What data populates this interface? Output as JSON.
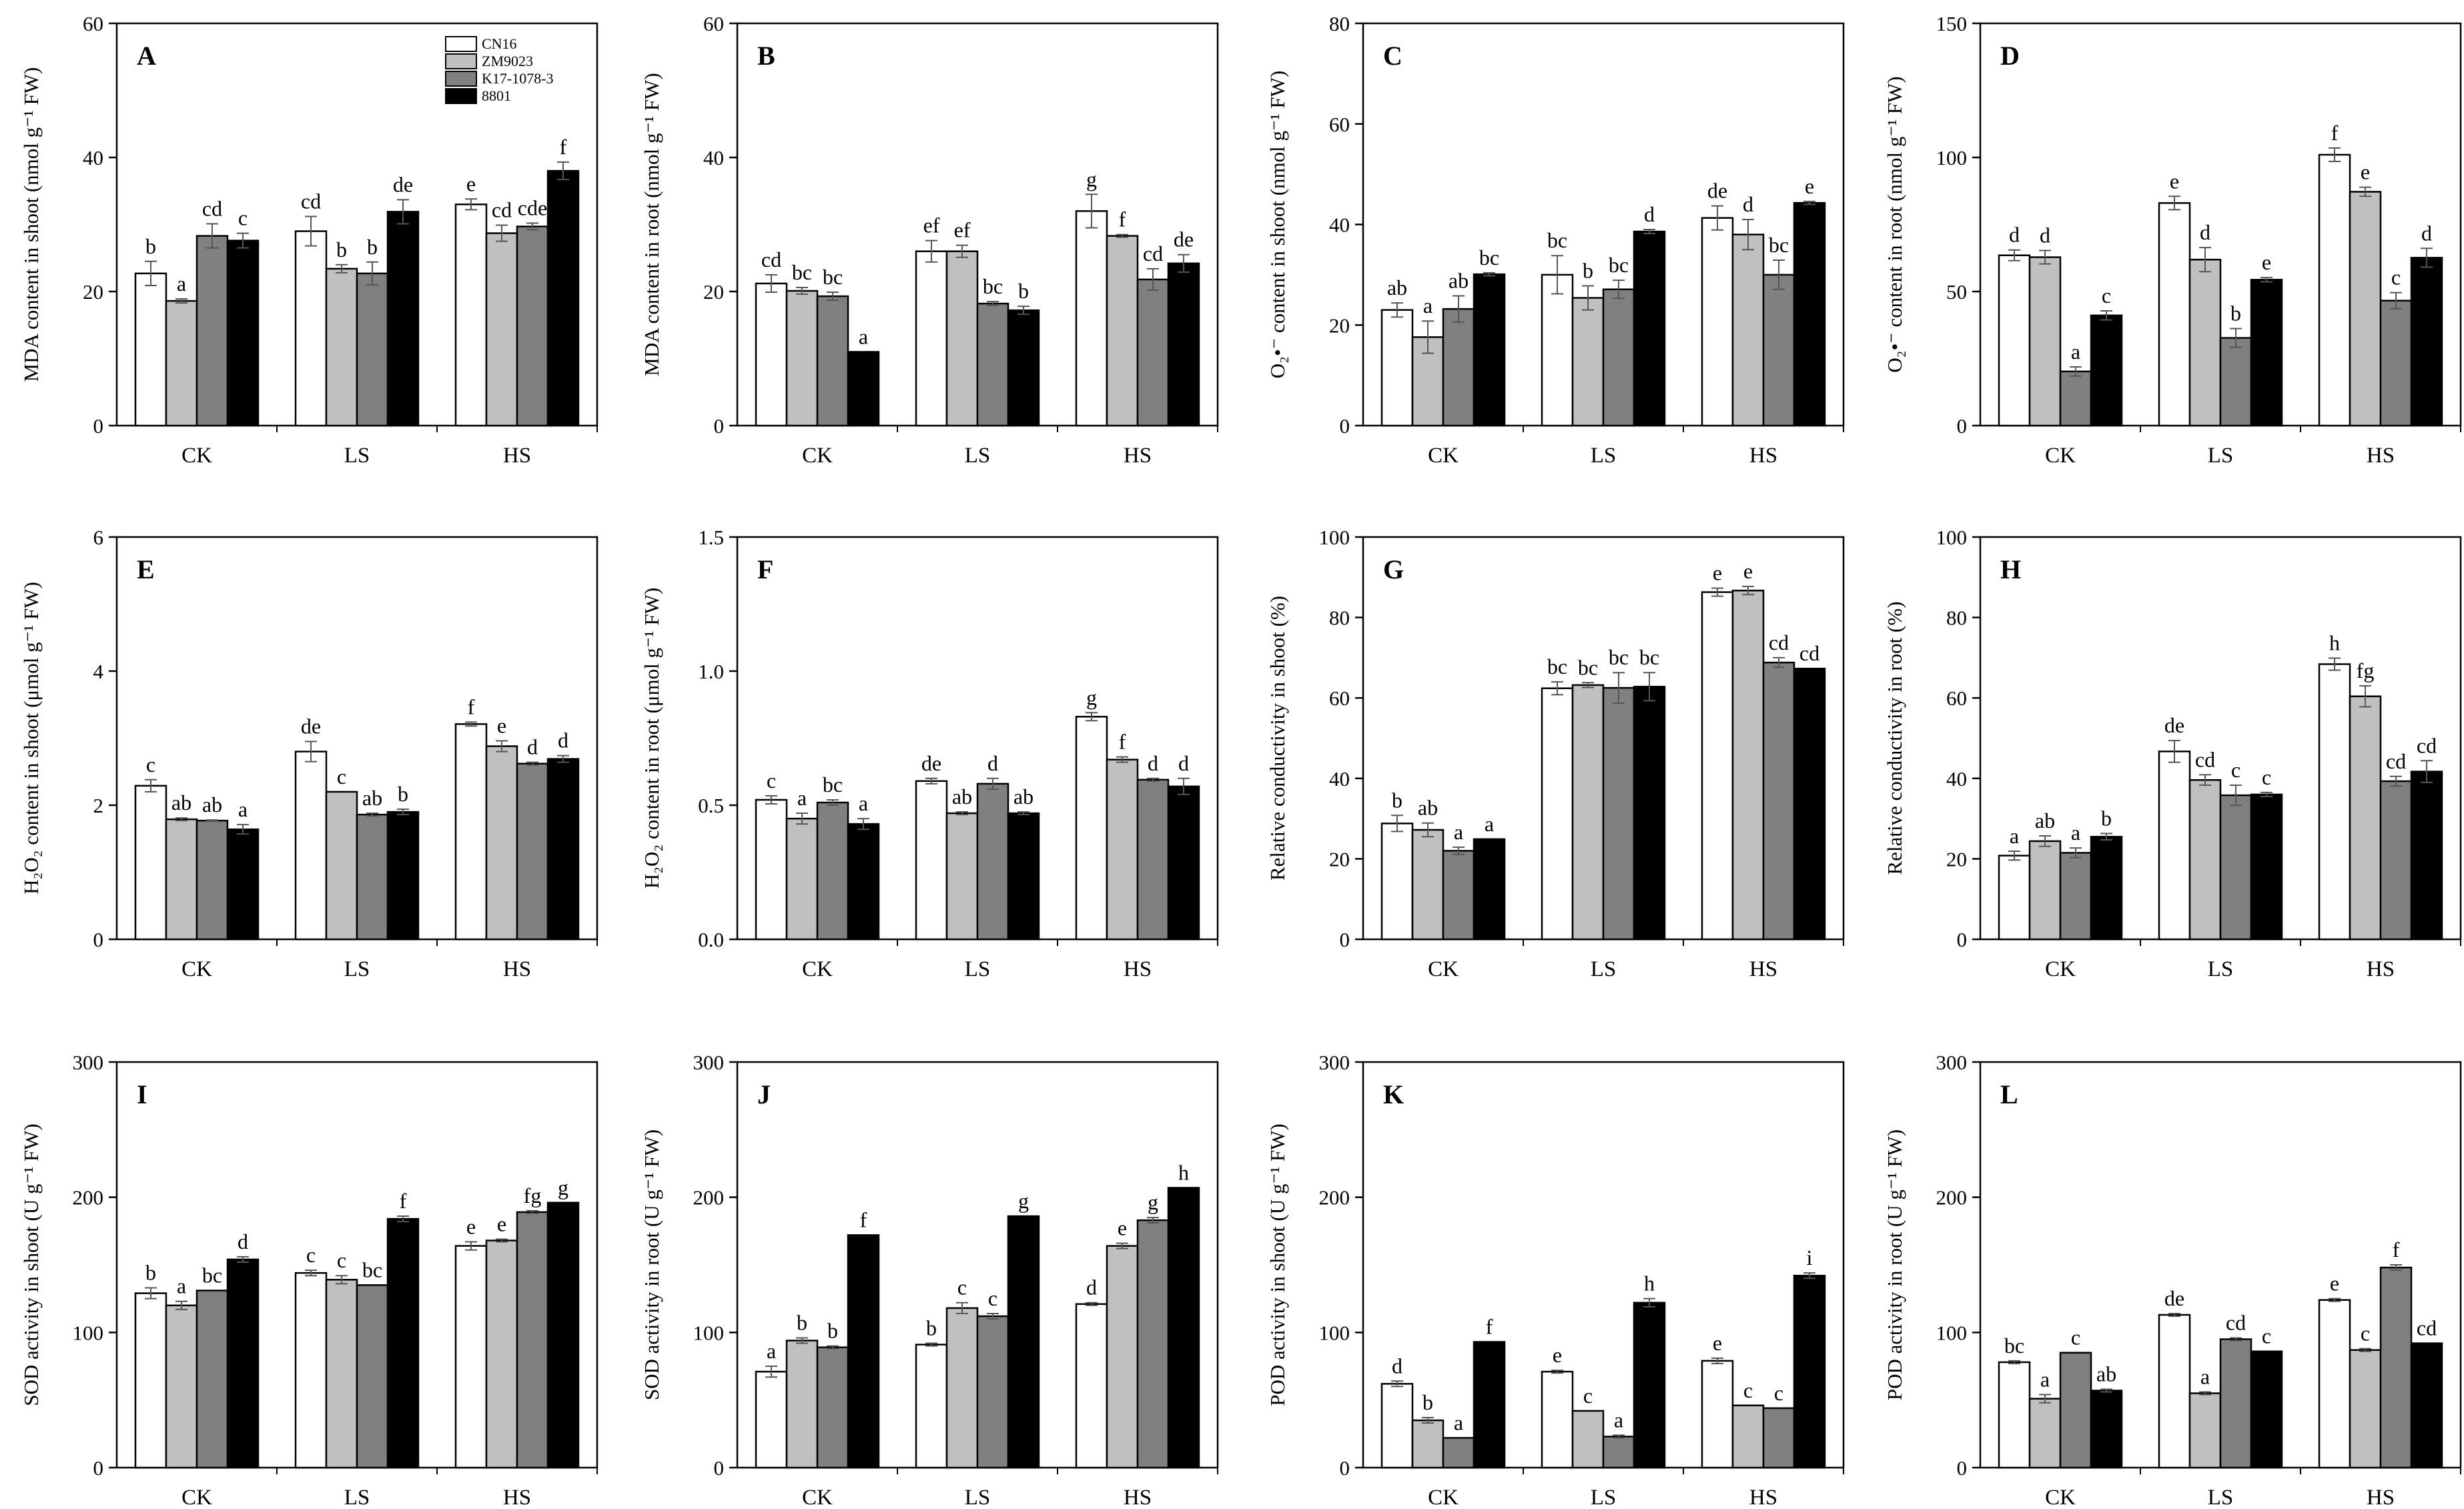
{
  "legend": {
    "entries": [
      "CN16",
      "ZM9023",
      "K17-1078-3",
      "8801"
    ],
    "colors": [
      "#ffffff",
      "#c0c0c0",
      "#808080",
      "#000000"
    ]
  },
  "chart_data": [
    {
      "panel": "A",
      "type": "bar",
      "ylabel": "MDA content in shoot (nmol g⁻¹ FW)",
      "categories": [
        "CK",
        "LS",
        "HS"
      ],
      "ylim": [
        0,
        60
      ],
      "yticks": [
        0,
        20,
        40,
        60
      ],
      "series": [
        {
          "name": "CN16",
          "values": [
            22.7,
            29.0,
            33.0
          ],
          "errors": [
            1.8,
            2.2,
            0.8
          ],
          "letters": [
            "b",
            "cd",
            "e"
          ]
        },
        {
          "name": "ZM9023",
          "values": [
            18.6,
            23.4,
            28.7
          ],
          "errors": [
            0.3,
            0.6,
            1.2
          ],
          "letters": [
            "a",
            "b",
            "cd"
          ]
        },
        {
          "name": "K17-1078-3",
          "values": [
            28.3,
            22.7,
            29.7
          ],
          "errors": [
            1.8,
            1.7,
            0.5
          ],
          "letters": [
            "cd",
            "b",
            "cde"
          ]
        },
        {
          "name": "8801",
          "values": [
            27.6,
            31.9,
            38.0
          ],
          "errors": [
            1.1,
            1.8,
            1.3
          ],
          "letters": [
            "c",
            "de",
            "f"
          ]
        }
      ]
    },
    {
      "panel": "B",
      "type": "bar",
      "ylabel": "MDA content in root (nmol g⁻¹ FW)",
      "categories": [
        "CK",
        "LS",
        "HS"
      ],
      "ylim": [
        0,
        60
      ],
      "yticks": [
        0,
        20,
        40,
        60
      ],
      "series": [
        {
          "name": "CN16",
          "values": [
            21.2,
            26.0,
            32.0
          ],
          "errors": [
            1.3,
            1.6,
            2.5
          ],
          "letters": [
            "cd",
            "ef",
            "g"
          ]
        },
        {
          "name": "ZM9023",
          "values": [
            20.1,
            26.0,
            28.3
          ],
          "errors": [
            0.5,
            0.9,
            0.2
          ],
          "letters": [
            "bc",
            "ef",
            "f"
          ]
        },
        {
          "name": "K17-1078-3",
          "values": [
            19.3,
            18.2,
            21.8
          ],
          "errors": [
            0.6,
            0.3,
            1.6
          ],
          "letters": [
            "bc",
            "bc",
            "cd"
          ]
        },
        {
          "name": "8801",
          "values": [
            11.0,
            17.2,
            24.2
          ],
          "errors": [
            0.0,
            0.6,
            1.3
          ],
          "letters": [
            "a",
            "b",
            "de"
          ]
        }
      ]
    },
    {
      "panel": "C",
      "type": "bar",
      "ylabel": "O₂•⁻ content in shoot (nmol g⁻¹ FW)",
      "categories": [
        "CK",
        "LS",
        "HS"
      ],
      "ylim": [
        0,
        80
      ],
      "yticks": [
        0,
        20,
        40,
        60,
        80
      ],
      "series": [
        {
          "name": "CN16",
          "values": [
            23.0,
            30.0,
            41.3
          ],
          "errors": [
            1.4,
            3.8,
            2.4
          ],
          "letters": [
            "ab",
            "bc",
            "de"
          ]
        },
        {
          "name": "ZM9023",
          "values": [
            17.6,
            25.4,
            38.0
          ],
          "errors": [
            3.2,
            2.4,
            3.0
          ],
          "letters": [
            "a",
            "b",
            "d"
          ]
        },
        {
          "name": "K17-1078-3",
          "values": [
            23.2,
            27.1,
            30.0
          ],
          "errors": [
            2.6,
            1.8,
            2.9
          ],
          "letters": [
            "ab",
            "bc",
            "bc"
          ]
        },
        {
          "name": "8801",
          "values": [
            30.1,
            38.6,
            44.3
          ],
          "errors": [
            0.3,
            0.4,
            0.3
          ],
          "letters": [
            "bc",
            "d",
            "e"
          ]
        }
      ]
    },
    {
      "panel": "D",
      "type": "bar",
      "ylabel": "O₂•⁻ content in root (nmol g⁻¹ FW)",
      "categories": [
        "CK",
        "LS",
        "HS"
      ],
      "ylim": [
        0,
        150
      ],
      "yticks": [
        0,
        50,
        100,
        150
      ],
      "series": [
        {
          "name": "CN16",
          "values": [
            63.5,
            83.0,
            101.0
          ],
          "errors": [
            2.0,
            2.5,
            2.5
          ],
          "letters": [
            "d",
            "e",
            "f"
          ]
        },
        {
          "name": "ZM9023",
          "values": [
            62.8,
            61.9,
            87.2
          ],
          "errors": [
            2.5,
            4.5,
            1.7
          ],
          "letters": [
            "d",
            "d",
            "e"
          ]
        },
        {
          "name": "K17-1078-3",
          "values": [
            20.2,
            32.7,
            46.6
          ],
          "errors": [
            1.7,
            3.5,
            3.0
          ],
          "letters": [
            "a",
            "b",
            "c"
          ]
        },
        {
          "name": "8801",
          "values": [
            41.1,
            54.4,
            62.6
          ],
          "errors": [
            1.7,
            0.8,
            3.5
          ],
          "letters": [
            "c",
            "e",
            "d"
          ]
        }
      ]
    },
    {
      "panel": "E",
      "type": "bar",
      "ylabel": "H₂O₂ content in shoot (μmol g⁻¹ FW)",
      "categories": [
        "CK",
        "LS",
        "HS"
      ],
      "ylim": [
        0,
        6
      ],
      "yticks": [
        0,
        2,
        4,
        6
      ],
      "series": [
        {
          "name": "CN16",
          "values": [
            2.29,
            2.8,
            3.21
          ],
          "errors": [
            0.09,
            0.15,
            0.03
          ],
          "letters": [
            "c",
            "de",
            "f"
          ]
        },
        {
          "name": "ZM9023",
          "values": [
            1.79,
            2.2,
            2.88
          ],
          "errors": [
            0.02,
            0.0,
            0.08
          ],
          "letters": [
            "ab",
            "c",
            "e"
          ]
        },
        {
          "name": "K17-1078-3",
          "values": [
            1.77,
            1.86,
            2.62
          ],
          "errors": [
            0.01,
            0.02,
            0.02
          ],
          "letters": [
            "ab",
            "ab",
            "d"
          ]
        },
        {
          "name": "8801",
          "values": [
            1.64,
            1.9,
            2.69
          ],
          "errors": [
            0.07,
            0.04,
            0.05
          ],
          "letters": [
            "a",
            "b",
            "d"
          ]
        }
      ]
    },
    {
      "panel": "F",
      "type": "bar",
      "ylabel": "H₂O₂ content in root (μmol g⁻¹ FW)",
      "categories": [
        "CK",
        "LS",
        "HS"
      ],
      "ylim": [
        0,
        1.5
      ],
      "yticks": [
        0,
        0.5,
        1.0,
        1.5
      ],
      "series": [
        {
          "name": "CN16",
          "values": [
            0.52,
            0.59,
            0.83
          ],
          "errors": [
            0.015,
            0.01,
            0.015
          ],
          "letters": [
            "c",
            "de",
            "g"
          ]
        },
        {
          "name": "ZM9023",
          "values": [
            0.45,
            0.47,
            0.67
          ],
          "errors": [
            0.02,
            0.005,
            0.01
          ],
          "letters": [
            "a",
            "ab",
            "f"
          ]
        },
        {
          "name": "K17-1078-3",
          "values": [
            0.51,
            0.58,
            0.595
          ],
          "errors": [
            0.01,
            0.02,
            0.005
          ],
          "letters": [
            "bc",
            "d",
            "d"
          ]
        },
        {
          "name": "8801",
          "values": [
            0.43,
            0.47,
            0.57
          ],
          "errors": [
            0.02,
            0.005,
            0.03
          ],
          "letters": [
            "a",
            "ab",
            "d"
          ]
        }
      ]
    },
    {
      "panel": "G",
      "type": "bar",
      "ylabel": "Relative conductivity in shoot (%)",
      "categories": [
        "CK",
        "LS",
        "HS"
      ],
      "ylim": [
        0,
        100
      ],
      "yticks": [
        0,
        20,
        40,
        60,
        80,
        100
      ],
      "series": [
        {
          "name": "CN16",
          "values": [
            28.8,
            62.4,
            86.3
          ],
          "errors": [
            2.0,
            1.6,
            1.0
          ],
          "letters": [
            "b",
            "bc",
            "e"
          ]
        },
        {
          "name": "ZM9023",
          "values": [
            27.2,
            63.2,
            86.7
          ],
          "errors": [
            1.7,
            0.6,
            1.0
          ],
          "letters": [
            "ab",
            "bc",
            "e"
          ]
        },
        {
          "name": "K17-1078-3",
          "values": [
            22.0,
            62.5,
            68.8
          ],
          "errors": [
            0.9,
            3.8,
            1.2
          ],
          "letters": [
            "a",
            "bc",
            "cd"
          ]
        },
        {
          "name": "8801",
          "values": [
            24.9,
            62.8,
            67.3
          ],
          "errors": [
            0.0,
            3.5,
            0.0
          ],
          "letters": [
            "a",
            "bc",
            "cd"
          ]
        }
      ]
    },
    {
      "panel": "H",
      "type": "bar",
      "ylabel": "Relative conductivity in root (%)",
      "categories": [
        "CK",
        "LS",
        "HS"
      ],
      "ylim": [
        0,
        100
      ],
      "yticks": [
        0,
        20,
        40,
        60,
        80,
        100
      ],
      "series": [
        {
          "name": "CN16",
          "values": [
            20.8,
            46.7,
            68.4
          ],
          "errors": [
            1.1,
            2.7,
            1.5
          ],
          "letters": [
            "a",
            "de",
            "h"
          ]
        },
        {
          "name": "ZM9023",
          "values": [
            24.4,
            39.6,
            60.4
          ],
          "errors": [
            1.3,
            1.3,
            2.6
          ],
          "letters": [
            "ab",
            "cd",
            "fg"
          ]
        },
        {
          "name": "K17-1078-3",
          "values": [
            21.5,
            35.8,
            39.3
          ],
          "errors": [
            1.2,
            2.5,
            1.2
          ],
          "letters": [
            "a",
            "c",
            "cd"
          ]
        },
        {
          "name": "8801",
          "values": [
            25.5,
            36.0,
            41.7
          ],
          "errors": [
            0.8,
            0.5,
            2.7
          ],
          "letters": [
            "b",
            "c",
            "cd"
          ]
        }
      ]
    },
    {
      "panel": "I",
      "type": "bar",
      "ylabel": "SOD activity in shoot (U g⁻¹ FW)",
      "categories": [
        "CK",
        "LS",
        "HS"
      ],
      "ylim": [
        0,
        300
      ],
      "yticks": [
        0,
        100,
        200,
        300
      ],
      "series": [
        {
          "name": "CN16",
          "values": [
            129,
            144,
            164
          ],
          "errors": [
            4,
            2,
            3
          ],
          "letters": [
            "b",
            "c",
            "e"
          ]
        },
        {
          "name": "ZM9023",
          "values": [
            120,
            139,
            168
          ],
          "errors": [
            3,
            3,
            1
          ],
          "letters": [
            "a",
            "c",
            "e"
          ]
        },
        {
          "name": "K17-1078-3",
          "values": [
            131,
            135,
            189
          ],
          "errors": [
            0,
            0,
            1
          ],
          "letters": [
            "bc",
            "bc",
            "fg"
          ]
        },
        {
          "name": "8801",
          "values": [
            154,
            184,
            196
          ],
          "errors": [
            2,
            2,
            0
          ],
          "letters": [
            "d",
            "f",
            "g"
          ]
        }
      ]
    },
    {
      "panel": "J",
      "type": "bar",
      "ylabel": "SOD activity in root (U g⁻¹ FW)",
      "categories": [
        "CK",
        "LS",
        "HS"
      ],
      "ylim": [
        0,
        300
      ],
      "yticks": [
        0,
        100,
        200,
        300
      ],
      "series": [
        {
          "name": "CN16",
          "values": [
            71,
            91,
            121
          ],
          "errors": [
            4,
            1,
            1
          ],
          "letters": [
            "a",
            "b",
            "d"
          ]
        },
        {
          "name": "ZM9023",
          "values": [
            94,
            118,
            164
          ],
          "errors": [
            2,
            4,
            2
          ],
          "letters": [
            "b",
            "c",
            "e"
          ]
        },
        {
          "name": "K17-1078-3",
          "values": [
            89,
            112,
            183
          ],
          "errors": [
            1,
            2,
            2
          ],
          "letters": [
            "b",
            "c",
            "g"
          ]
        },
        {
          "name": "8801",
          "values": [
            172,
            186,
            207
          ],
          "errors": [
            0,
            0,
            0
          ],
          "letters": [
            "f",
            "g",
            "h"
          ]
        }
      ]
    },
    {
      "panel": "K",
      "type": "bar",
      "ylabel": "POD activity in shoot (U g⁻¹ FW)",
      "categories": [
        "CK",
        "LS",
        "HS"
      ],
      "ylim": [
        0,
        300
      ],
      "yticks": [
        0,
        100,
        200,
        300
      ],
      "series": [
        {
          "name": "CN16",
          "values": [
            62,
            71,
            79
          ],
          "errors": [
            2,
            1,
            2
          ],
          "letters": [
            "d",
            "e",
            "e"
          ]
        },
        {
          "name": "ZM9023",
          "values": [
            35,
            42,
            46
          ],
          "errors": [
            2,
            0,
            0
          ],
          "letters": [
            "b",
            "c",
            "c"
          ]
        },
        {
          "name": "K17-1078-3",
          "values": [
            22,
            23,
            44
          ],
          "errors": [
            0,
            1,
            0
          ],
          "letters": [
            "a",
            "a",
            "c"
          ]
        },
        {
          "name": "8801",
          "values": [
            93,
            122,
            142
          ],
          "errors": [
            0,
            3,
            2
          ],
          "letters": [
            "f",
            "h",
            "i"
          ]
        }
      ]
    },
    {
      "panel": "L",
      "type": "bar",
      "ylabel": "POD activity in root (U g⁻¹ FW)",
      "categories": [
        "CK",
        "LS",
        "HS"
      ],
      "ylim": [
        0,
        300
      ],
      "yticks": [
        0,
        100,
        200,
        300
      ],
      "series": [
        {
          "name": "CN16",
          "values": [
            78,
            113,
            124
          ],
          "errors": [
            1,
            1,
            1
          ],
          "letters": [
            "bc",
            "de",
            "e"
          ]
        },
        {
          "name": "ZM9023",
          "values": [
            51,
            55,
            87
          ],
          "errors": [
            3,
            1,
            1
          ],
          "letters": [
            "a",
            "a",
            "c"
          ]
        },
        {
          "name": "K17-1078-3",
          "values": [
            85,
            95,
            148
          ],
          "errors": [
            0,
            1,
            2
          ],
          "letters": [
            "c",
            "cd",
            "f"
          ]
        },
        {
          "name": "8801",
          "values": [
            57,
            86,
            92
          ],
          "errors": [
            1,
            0,
            0
          ],
          "letters": [
            "ab",
            "c",
            "cd"
          ]
        }
      ]
    }
  ]
}
